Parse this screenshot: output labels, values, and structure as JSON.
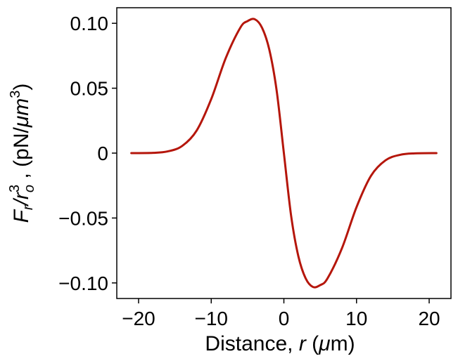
{
  "chart_data": {
    "type": "line",
    "title": "",
    "xlabel": {
      "main": "Distance, ",
      "var": "r",
      "open": " (",
      "mu": "μ",
      "unit": "m)"
    },
    "ylabel": {
      "F": "F",
      "r_sub": "r",
      "slash": "/",
      "r": "r",
      "o_sub": "o",
      "exp": "3",
      "sep": " ,  (pN/",
      "mu": "μ",
      "m": "m",
      "exp2": "3",
      "close": ")"
    },
    "xlim": [
      -23,
      23
    ],
    "ylim": [
      -0.112,
      0.112
    ],
    "x_ticks": [
      -20,
      -10,
      0,
      10,
      20
    ],
    "x_tick_labels": [
      "−20",
      "−10",
      "0",
      "10",
      "20"
    ],
    "y_ticks": [
      -0.1,
      -0.05,
      0,
      0.05,
      0.1
    ],
    "y_tick_labels": [
      "−0.10",
      "−0.05",
      "0",
      "0.05",
      "0.10"
    ],
    "grid": false,
    "series": [
      {
        "color": "#b5160b",
        "x": [
          -21,
          -18,
          -16,
          -14,
          -12,
          -10,
          -8,
          -6,
          -5,
          -4,
          -3,
          -2,
          -1,
          0,
          1,
          2,
          3,
          4,
          5,
          6,
          8,
          10,
          12,
          14,
          16,
          18,
          21
        ],
        "y": [
          0.0,
          0.0002,
          0.0013,
          0.0055,
          0.0174,
          0.0416,
          0.0732,
          0.0966,
          0.1017,
          0.1031,
          0.0965,
          0.0796,
          0.0484,
          0.0,
          -0.0484,
          -0.0796,
          -0.0965,
          -0.1031,
          -0.1017,
          -0.0966,
          -0.0732,
          -0.0416,
          -0.0174,
          -0.0055,
          -0.0013,
          -0.0002,
          0.0
        ]
      }
    ]
  }
}
